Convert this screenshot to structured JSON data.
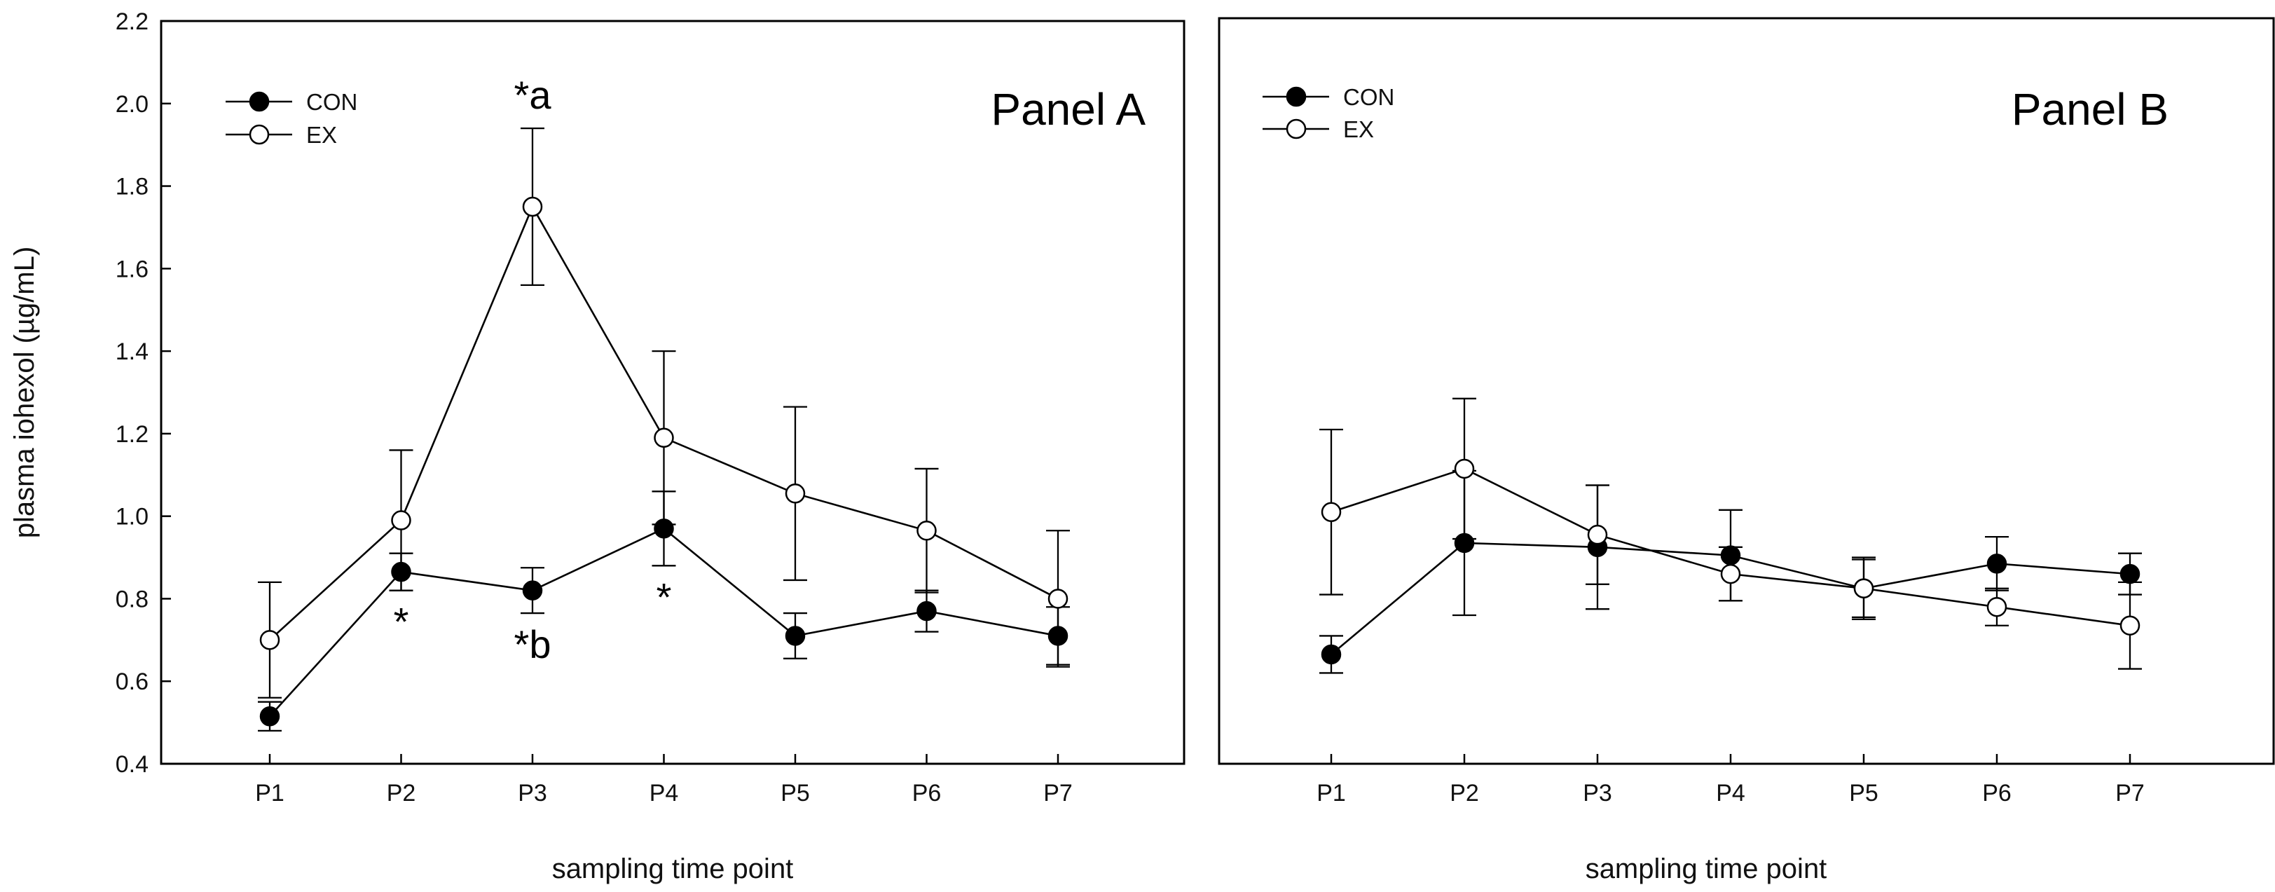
{
  "figure": {
    "ylabel": "plasma iohexol (µg/mL)",
    "ytick_labels": [
      "0.4",
      "0.6",
      "0.8",
      "1.0",
      "1.2",
      "1.4",
      "1.6",
      "1.8",
      "2.0",
      "2.2"
    ]
  },
  "chart_data": [
    {
      "type": "line",
      "title": "Panel A",
      "xlabel": "sampling time point",
      "ylabel": "plasma iohexol (µg/mL)",
      "ylim": [
        0.4,
        2.2
      ],
      "grid": false,
      "legend_position": "top-left",
      "categories": [
        "P1",
        "P2",
        "P3",
        "P4",
        "P5",
        "P6",
        "P7"
      ],
      "series": [
        {
          "name": "CON",
          "marker": "filled-circle",
          "values": [
            0.515,
            0.865,
            0.82,
            0.97,
            0.71,
            0.77,
            0.71
          ],
          "error": [
            0.035,
            0.045,
            0.055,
            0.09,
            0.055,
            0.05,
            0.07
          ]
        },
        {
          "name": "EX",
          "marker": "open-circle",
          "values": [
            0.7,
            0.99,
            1.75,
            1.19,
            1.055,
            0.965,
            0.8
          ],
          "error": [
            0.14,
            0.17,
            0.19,
            0.21,
            0.21,
            0.15,
            0.165
          ]
        }
      ],
      "annotations": [
        {
          "text": "*a",
          "category": "P3",
          "anchor": "above-EX"
        },
        {
          "text": "*",
          "category": "P2",
          "anchor": "below-CON"
        },
        {
          "text": "*b",
          "category": "P3",
          "anchor": "below-CON"
        },
        {
          "text": "*",
          "category": "P4",
          "anchor": "below-CON"
        }
      ]
    },
    {
      "type": "line",
      "title": "Panel B",
      "xlabel": "sampling time point",
      "ylabel": "plasma iohexol (µg/mL)",
      "ylim": [
        0.4,
        2.2
      ],
      "grid": false,
      "legend_position": "top-left",
      "categories": [
        "P1",
        "P2",
        "P3",
        "P4",
        "P5",
        "P6",
        "P7"
      ],
      "series": [
        {
          "name": "CON",
          "marker": "filled-circle",
          "values": [
            0.665,
            0.935,
            0.925,
            0.905,
            0.825,
            0.885,
            0.86
          ],
          "error": [
            0.045,
            0.175,
            0.15,
            0.11,
            0.075,
            0.065,
            0.05
          ]
        },
        {
          "name": "EX",
          "marker": "open-circle",
          "values": [
            1.01,
            1.115,
            0.955,
            0.86,
            0.825,
            0.78,
            0.735
          ],
          "error": [
            0.2,
            0.17,
            0.12,
            0.065,
            0.07,
            0.045,
            0.105
          ]
        }
      ],
      "annotations": []
    }
  ]
}
